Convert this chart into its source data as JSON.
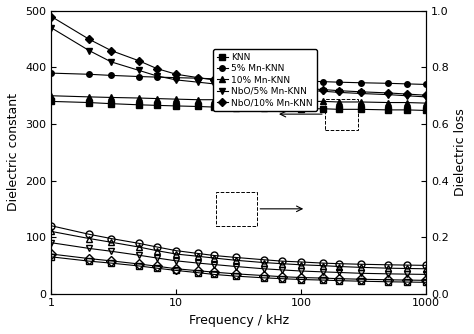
{
  "xlabel": "Frequency / kHz",
  "ylabel_left": "Dielectric constant",
  "ylabel_right": "Dielectric loss",
  "xlim": [
    1,
    1000
  ],
  "ylim_left": [
    0,
    500
  ],
  "ylim_right": [
    0,
    1.0
  ],
  "freq": [
    1,
    2,
    3,
    5,
    7,
    10,
    15,
    20,
    30,
    50,
    70,
    100,
    150,
    200,
    300,
    500,
    700,
    1000
  ],
  "dc_KNN": [
    340,
    338,
    336,
    334,
    333,
    332,
    331,
    330,
    329,
    328,
    328,
    327,
    327,
    326,
    326,
    325,
    325,
    324
  ],
  "dc_5MnKNN": [
    390,
    388,
    386,
    384,
    383,
    382,
    381,
    380,
    379,
    378,
    377,
    376,
    375,
    374,
    373,
    372,
    371,
    370
  ],
  "dc_10MnKNN": [
    350,
    348,
    347,
    346,
    345,
    344,
    343,
    343,
    342,
    341,
    341,
    340,
    340,
    339,
    339,
    338,
    338,
    337
  ],
  "dc_NbO5MnKNN": [
    470,
    430,
    410,
    395,
    385,
    378,
    374,
    371,
    368,
    365,
    362,
    360,
    358,
    356,
    354,
    352,
    350,
    348
  ],
  "dc_NbO10MnKNN": [
    490,
    450,
    430,
    412,
    398,
    388,
    382,
    378,
    373,
    369,
    366,
    363,
    361,
    359,
    357,
    355,
    353,
    351
  ],
  "dl_KNN": [
    0.13,
    0.115,
    0.108,
    0.098,
    0.09,
    0.082,
    0.074,
    0.068,
    0.062,
    0.056,
    0.053,
    0.05,
    0.048,
    0.046,
    0.044,
    0.042,
    0.041,
    0.04
  ],
  "dl_5MnKNN": [
    0.24,
    0.21,
    0.195,
    0.178,
    0.165,
    0.152,
    0.142,
    0.135,
    0.128,
    0.12,
    0.115,
    0.112,
    0.108,
    0.106,
    0.104,
    0.102,
    0.101,
    0.1
  ],
  "dl_10MnKNN": [
    0.22,
    0.195,
    0.182,
    0.165,
    0.152,
    0.14,
    0.132,
    0.126,
    0.118,
    0.11,
    0.106,
    0.102,
    0.099,
    0.096,
    0.093,
    0.09,
    0.089,
    0.088
  ],
  "dl_NbO5MnKNN": [
    0.18,
    0.16,
    0.15,
    0.136,
    0.126,
    0.116,
    0.108,
    0.103,
    0.096,
    0.088,
    0.084,
    0.08,
    0.077,
    0.075,
    0.072,
    0.07,
    0.069,
    0.068
  ],
  "dl_NbO10MnKNN": [
    0.14,
    0.124,
    0.116,
    0.105,
    0.097,
    0.088,
    0.081,
    0.076,
    0.07,
    0.064,
    0.06,
    0.057,
    0.055,
    0.053,
    0.051,
    0.049,
    0.048,
    0.047
  ],
  "legend_labels": [
    "KNN",
    "5% Mn-KNN",
    "10% Mn-KNN",
    "NbO/5% Mn-KNN",
    "NbO/10% Mn-KNN"
  ],
  "dc_markers": [
    "s",
    "o",
    "^",
    "v",
    "D"
  ],
  "dl_markers": [
    "s",
    "o",
    "^",
    "v",
    "D"
  ],
  "markersize_dc": 4,
  "markersize_dl": 5,
  "linewidth": 0.8
}
